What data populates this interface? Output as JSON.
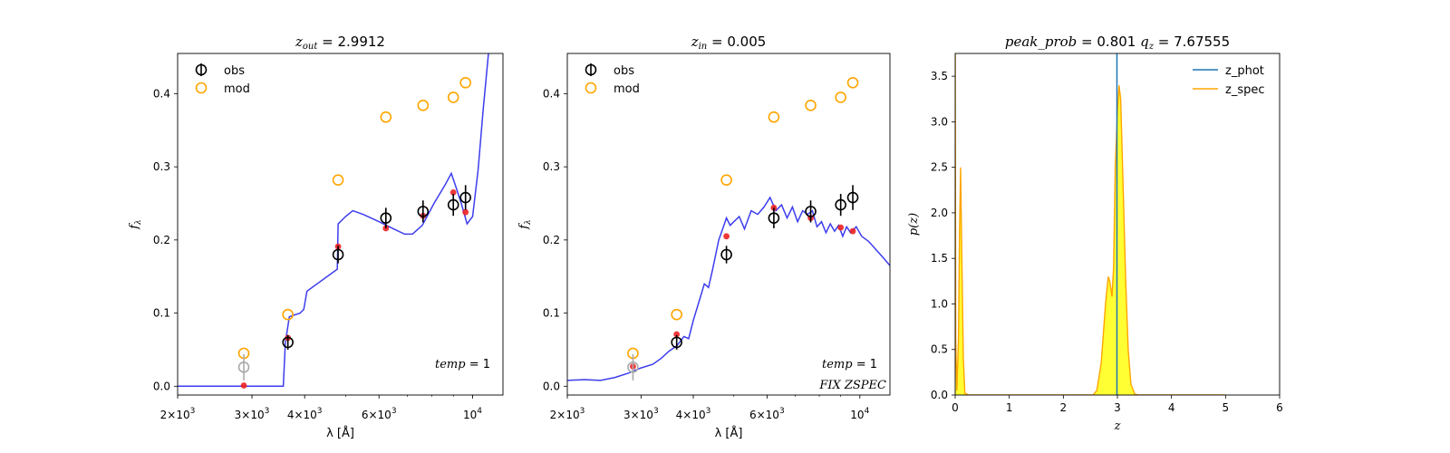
{
  "chart_data": [
    {
      "type": "scatter",
      "title": "z_out = 2.9912",
      "title_parts": {
        "var": "z",
        "sub": "out",
        "eq": " = 2.9912"
      },
      "xlabel": "λ [Å]",
      "ylabel": "f_λ",
      "xscale": "log",
      "xlim": [
        2000,
        11800
      ],
      "ylim": [
        -0.012,
        0.455
      ],
      "xticks": [
        {
          "v": 2000,
          "base": "2×10",
          "exp": "3"
        },
        {
          "v": 3000,
          "base": "3×10",
          "exp": "3"
        },
        {
          "v": 4000,
          "base": "4×10",
          "exp": "3"
        },
        {
          "v": 6000,
          "base": "6×10",
          "exp": "3"
        },
        {
          "v": 10000,
          "base": "10",
          "exp": "4"
        }
      ],
      "yticks": [
        0.0,
        0.1,
        0.2,
        0.3,
        0.4
      ],
      "yticks_labels": [
        "0.0",
        "0.1",
        "0.2",
        "0.3",
        "0.4"
      ],
      "annotations": [
        {
          "text": "temp = 1",
          "position": "lower-right"
        }
      ],
      "legend": {
        "position": "top-left",
        "entries": [
          "obs",
          "mod"
        ]
      },
      "series": [
        {
          "name": "obs",
          "style": "open-circle-errorbar",
          "color": "#000000",
          "points": [
            {
              "x": 3650,
              "y": 0.06,
              "err": 0.01
            },
            {
              "x": 4800,
              "y": 0.18,
              "err": 0.012
            },
            {
              "x": 6230,
              "y": 0.23,
              "err": 0.014
            },
            {
              "x": 7630,
              "y": 0.239,
              "err": 0.015
            },
            {
              "x": 9000,
              "y": 0.248,
              "err": 0.015
            },
            {
              "x": 9620,
              "y": 0.258,
              "err": 0.017
            }
          ]
        },
        {
          "name": "obs_faint",
          "style": "open-circle-errorbar",
          "color": "#aaaaaa",
          "points": [
            {
              "x": 2870,
              "y": 0.026,
              "err": 0.018
            }
          ]
        },
        {
          "name": "mod",
          "style": "open-circle",
          "color": "#FFA500",
          "points": [
            {
              "x": 2870,
              "y": 0.045
            },
            {
              "x": 3650,
              "y": 0.098
            },
            {
              "x": 4800,
              "y": 0.282
            },
            {
              "x": 6230,
              "y": 0.368
            },
            {
              "x": 7630,
              "y": 0.384
            },
            {
              "x": 9000,
              "y": 0.395
            },
            {
              "x": 9620,
              "y": 0.415
            }
          ]
        },
        {
          "name": "model_phot",
          "style": "dot",
          "color": "#ee2222",
          "points": [
            {
              "x": 2870,
              "y": 0.001
            },
            {
              "x": 3650,
              "y": 0.066
            },
            {
              "x": 4800,
              "y": 0.191
            },
            {
              "x": 6230,
              "y": 0.216
            },
            {
              "x": 7630,
              "y": 0.233
            },
            {
              "x": 9000,
              "y": 0.265
            },
            {
              "x": 9620,
              "y": 0.238
            }
          ]
        },
        {
          "name": "template",
          "style": "line",
          "color": "#3333ee",
          "points": [
            {
              "x": 2000,
              "y": 0.0
            },
            {
              "x": 3560,
              "y": 0.0
            },
            {
              "x": 3600,
              "y": 0.06
            },
            {
              "x": 3680,
              "y": 0.095
            },
            {
              "x": 3900,
              "y": 0.1
            },
            {
              "x": 3980,
              "y": 0.105
            },
            {
              "x": 4050,
              "y": 0.13
            },
            {
              "x": 4780,
              "y": 0.16
            },
            {
              "x": 4800,
              "y": 0.222
            },
            {
              "x": 5000,
              "y": 0.232
            },
            {
              "x": 5200,
              "y": 0.24
            },
            {
              "x": 5500,
              "y": 0.235
            },
            {
              "x": 6000,
              "y": 0.225
            },
            {
              "x": 6500,
              "y": 0.215
            },
            {
              "x": 6900,
              "y": 0.208
            },
            {
              "x": 7200,
              "y": 0.208
            },
            {
              "x": 7600,
              "y": 0.22
            },
            {
              "x": 8100,
              "y": 0.25
            },
            {
              "x": 8600,
              "y": 0.275
            },
            {
              "x": 8900,
              "y": 0.291
            },
            {
              "x": 9100,
              "y": 0.275
            },
            {
              "x": 9400,
              "y": 0.25
            },
            {
              "x": 9700,
              "y": 0.222
            },
            {
              "x": 10000,
              "y": 0.232
            },
            {
              "x": 10300,
              "y": 0.295
            },
            {
              "x": 10600,
              "y": 0.38
            },
            {
              "x": 10900,
              "y": 0.455
            }
          ]
        }
      ]
    },
    {
      "type": "scatter",
      "title": "z_in = 0.005",
      "title_parts": {
        "var": "z",
        "sub": "in",
        "eq": " = 0.005"
      },
      "xlabel": "λ [Å]",
      "ylabel": "f_λ",
      "xscale": "log",
      "xlim": [
        2000,
        11800
      ],
      "ylim": [
        -0.012,
        0.455
      ],
      "xticks": [
        {
          "v": 2000,
          "base": "2×10",
          "exp": "3"
        },
        {
          "v": 3000,
          "base": "3×10",
          "exp": "3"
        },
        {
          "v": 4000,
          "base": "4×10",
          "exp": "3"
        },
        {
          "v": 6000,
          "base": "6×10",
          "exp": "3"
        },
        {
          "v": 10000,
          "base": "10",
          "exp": "4"
        }
      ],
      "yticks": [
        0.0,
        0.1,
        0.2,
        0.3,
        0.4
      ],
      "yticks_labels": [
        "0.0",
        "0.1",
        "0.2",
        "0.3",
        "0.4"
      ],
      "annotations": [
        {
          "text": "temp = 1",
          "position": "lower-right"
        },
        {
          "text": "FIX ZSPEC",
          "position": "lower-right"
        }
      ],
      "legend": {
        "position": "top-left",
        "entries": [
          "obs",
          "mod"
        ]
      },
      "series": [
        {
          "name": "obs",
          "style": "open-circle-errorbar",
          "color": "#000000",
          "points": [
            {
              "x": 3650,
              "y": 0.06,
              "err": 0.01
            },
            {
              "x": 4800,
              "y": 0.18,
              "err": 0.012
            },
            {
              "x": 6230,
              "y": 0.23,
              "err": 0.014
            },
            {
              "x": 7630,
              "y": 0.239,
              "err": 0.015
            },
            {
              "x": 9000,
              "y": 0.248,
              "err": 0.015
            },
            {
              "x": 9620,
              "y": 0.258,
              "err": 0.017
            }
          ]
        },
        {
          "name": "obs_faint",
          "style": "open-circle-errorbar",
          "color": "#aaaaaa",
          "points": [
            {
              "x": 2870,
              "y": 0.026,
              "err": 0.018
            }
          ]
        },
        {
          "name": "mod",
          "style": "open-circle",
          "color": "#FFA500",
          "points": [
            {
              "x": 2870,
              "y": 0.045
            },
            {
              "x": 3650,
              "y": 0.098
            },
            {
              "x": 4800,
              "y": 0.282
            },
            {
              "x": 6230,
              "y": 0.368
            },
            {
              "x": 7630,
              "y": 0.384
            },
            {
              "x": 9000,
              "y": 0.395
            },
            {
              "x": 9620,
              "y": 0.415
            }
          ]
        },
        {
          "name": "model_phot",
          "style": "dot",
          "color": "#ee2222",
          "points": [
            {
              "x": 2870,
              "y": 0.027
            },
            {
              "x": 3650,
              "y": 0.071
            },
            {
              "x": 4800,
              "y": 0.205
            },
            {
              "x": 6230,
              "y": 0.244
            },
            {
              "x": 7630,
              "y": 0.23
            },
            {
              "x": 9000,
              "y": 0.217
            },
            {
              "x": 9620,
              "y": 0.212
            }
          ]
        },
        {
          "name": "template",
          "style": "line",
          "color": "#3333ee",
          "points": [
            {
              "x": 2000,
              "y": 0.008
            },
            {
              "x": 2200,
              "y": 0.009
            },
            {
              "x": 2400,
              "y": 0.008
            },
            {
              "x": 2600,
              "y": 0.012
            },
            {
              "x": 2800,
              "y": 0.018
            },
            {
              "x": 3000,
              "y": 0.025
            },
            {
              "x": 3200,
              "y": 0.03
            },
            {
              "x": 3350,
              "y": 0.038
            },
            {
              "x": 3500,
              "y": 0.048
            },
            {
              "x": 3650,
              "y": 0.055
            },
            {
              "x": 3800,
              "y": 0.068
            },
            {
              "x": 3900,
              "y": 0.065
            },
            {
              "x": 4000,
              "y": 0.09
            },
            {
              "x": 4150,
              "y": 0.12
            },
            {
              "x": 4250,
              "y": 0.14
            },
            {
              "x": 4350,
              "y": 0.135
            },
            {
              "x": 4450,
              "y": 0.16
            },
            {
              "x": 4600,
              "y": 0.2
            },
            {
              "x": 4700,
              "y": 0.215
            },
            {
              "x": 4800,
              "y": 0.23
            },
            {
              "x": 4900,
              "y": 0.22
            },
            {
              "x": 5000,
              "y": 0.225
            },
            {
              "x": 5150,
              "y": 0.232
            },
            {
              "x": 5300,
              "y": 0.215
            },
            {
              "x": 5500,
              "y": 0.24
            },
            {
              "x": 5700,
              "y": 0.235
            },
            {
              "x": 5900,
              "y": 0.245
            },
            {
              "x": 6100,
              "y": 0.258
            },
            {
              "x": 6300,
              "y": 0.24
            },
            {
              "x": 6500,
              "y": 0.248
            },
            {
              "x": 6700,
              "y": 0.23
            },
            {
              "x": 6900,
              "y": 0.245
            },
            {
              "x": 7100,
              "y": 0.225
            },
            {
              "x": 7300,
              "y": 0.24
            },
            {
              "x": 7500,
              "y": 0.235
            },
            {
              "x": 7700,
              "y": 0.24
            },
            {
              "x": 7900,
              "y": 0.218
            },
            {
              "x": 8100,
              "y": 0.225
            },
            {
              "x": 8300,
              "y": 0.21
            },
            {
              "x": 8500,
              "y": 0.222
            },
            {
              "x": 8700,
              "y": 0.212
            },
            {
              "x": 8900,
              "y": 0.22
            },
            {
              "x": 9100,
              "y": 0.205
            },
            {
              "x": 9300,
              "y": 0.218
            },
            {
              "x": 9500,
              "y": 0.21
            },
            {
              "x": 9800,
              "y": 0.218
            },
            {
              "x": 10100,
              "y": 0.205
            },
            {
              "x": 10500,
              "y": 0.198
            },
            {
              "x": 11000,
              "y": 0.185
            },
            {
              "x": 11400,
              "y": 0.175
            },
            {
              "x": 11800,
              "y": 0.165
            }
          ]
        }
      ]
    },
    {
      "type": "area",
      "title": "peak_prob = 0.801     q_z = 7.67555",
      "title_parts": {
        "a_var": "peak_prob",
        "a_eq": " = 0.801",
        "b_var": "q_z",
        "b_eq": " = 7.67555"
      },
      "xlabel": "z",
      "ylabel": "p(z)",
      "xlim": [
        0,
        6
      ],
      "ylim": [
        0,
        3.75
      ],
      "xticks": [
        0,
        1,
        2,
        3,
        4,
        5,
        6
      ],
      "xticks_labels": [
        "0",
        "1",
        "2",
        "3",
        "4",
        "5",
        "6"
      ],
      "yticks": [
        0.0,
        0.5,
        1.0,
        1.5,
        2.0,
        2.5,
        3.0,
        3.5
      ],
      "yticks_labels": [
        "0.0",
        "0.5",
        "1.0",
        "1.5",
        "2.0",
        "2.5",
        "3.0",
        "3.5"
      ],
      "legend": {
        "position": "top-right",
        "entries": [
          "z_phot",
          "z_spec"
        ]
      },
      "fill_color": "#ffff33",
      "curve_color": "#FFA500",
      "z_phot": 2.9912,
      "z_phot_color": "#1f77b4",
      "series": [
        {
          "name": "p(z)",
          "points": [
            {
              "x": 0.0,
              "y": 3.75
            },
            {
              "x": 0.01,
              "y": 0.6
            },
            {
              "x": 0.03,
              "y": 0.05
            },
            {
              "x": 0.06,
              "y": 0.6
            },
            {
              "x": 0.08,
              "y": 1.8
            },
            {
              "x": 0.1,
              "y": 2.5
            },
            {
              "x": 0.12,
              "y": 1.6
            },
            {
              "x": 0.15,
              "y": 0.4
            },
            {
              "x": 0.18,
              "y": 0.02
            },
            {
              "x": 0.25,
              "y": 0.0
            },
            {
              "x": 2.55,
              "y": 0.0
            },
            {
              "x": 2.62,
              "y": 0.05
            },
            {
              "x": 2.7,
              "y": 0.35
            },
            {
              "x": 2.78,
              "y": 1.0
            },
            {
              "x": 2.83,
              "y": 1.3
            },
            {
              "x": 2.86,
              "y": 1.25
            },
            {
              "x": 2.9,
              "y": 1.08
            },
            {
              "x": 2.93,
              "y": 1.4
            },
            {
              "x": 2.96,
              "y": 2.5
            },
            {
              "x": 3.0,
              "y": 3.1
            },
            {
              "x": 3.03,
              "y": 3.4
            },
            {
              "x": 3.06,
              "y": 3.25
            },
            {
              "x": 3.1,
              "y": 2.4
            },
            {
              "x": 3.15,
              "y": 1.3
            },
            {
              "x": 3.2,
              "y": 0.5
            },
            {
              "x": 3.25,
              "y": 0.12
            },
            {
              "x": 3.32,
              "y": 0.01
            },
            {
              "x": 3.4,
              "y": 0.0
            },
            {
              "x": 5.0,
              "y": 0.0
            }
          ]
        }
      ]
    }
  ]
}
